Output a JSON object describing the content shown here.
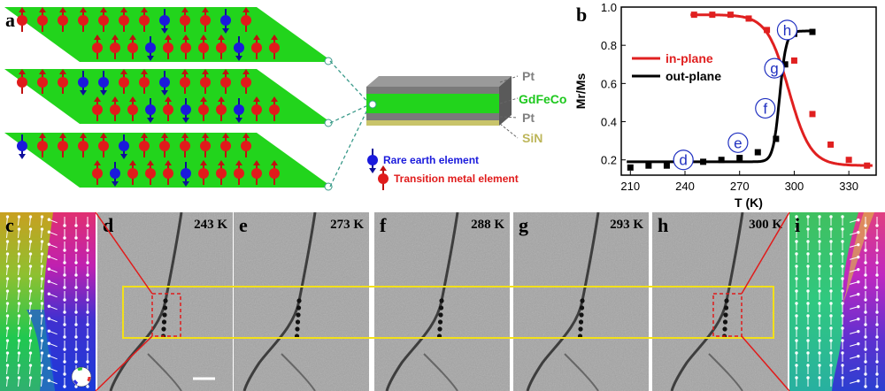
{
  "figure": {
    "panel_labels": {
      "a": "a",
      "b": "b",
      "c": "c",
      "d": "d",
      "e": "e",
      "f": "f",
      "g": "g",
      "h": "h",
      "i": "i"
    },
    "schematic": {
      "layers": [
        "Pt",
        "GdFeCo",
        "Pt",
        "SiN"
      ],
      "legend": {
        "rare_earth": "Rare earth element",
        "transition_metal": "Transition metal element"
      },
      "colors": {
        "film": "#22d41c",
        "rare_earth": "#1a1adc",
        "transition_metal": "#e01b1b",
        "pt": "#888888",
        "sin": "#c9c46a"
      }
    },
    "tem_temperatures": [
      "243 K",
      "273 K",
      "288 K",
      "293 K",
      "300 K"
    ],
    "tem_letters": [
      "d",
      "e",
      "f",
      "g",
      "h"
    ],
    "chart_data": {
      "type": "scatter",
      "xlabel": "T (K)",
      "ylabel": "Mr/Ms",
      "xlim": [
        205,
        345
      ],
      "ylim": [
        0.12,
        1.0
      ],
      "xticks": [
        210,
        240,
        270,
        300,
        330
      ],
      "yticks": [
        0.2,
        0.4,
        0.6,
        0.8,
        1.0
      ],
      "legend_position": "top-left",
      "series": [
        {
          "name": "in-plane",
          "color": "#e02020",
          "x": [
            245,
            255,
            265,
            275,
            285,
            300,
            310,
            320,
            330,
            340
          ],
          "y": [
            0.96,
            0.96,
            0.96,
            0.94,
            0.88,
            0.72,
            0.44,
            0.28,
            0.2,
            0.17
          ]
        },
        {
          "name": "out-plane",
          "color": "#000000",
          "x": [
            210,
            220,
            230,
            240,
            250,
            260,
            270,
            280,
            290,
            295,
            300,
            310
          ],
          "y": [
            0.16,
            0.17,
            0.17,
            0.18,
            0.19,
            0.2,
            0.21,
            0.24,
            0.31,
            0.7,
            0.86,
            0.87
          ]
        }
      ],
      "annotations": [
        {
          "text": "d",
          "x": 243,
          "y": 0.2
        },
        {
          "text": "e",
          "x": 273,
          "y": 0.29
        },
        {
          "text": "f",
          "x": 288,
          "y": 0.47
        },
        {
          "text": "g",
          "x": 293,
          "y": 0.68
        },
        {
          "text": "h",
          "x": 300,
          "y": 0.88
        }
      ]
    }
  }
}
